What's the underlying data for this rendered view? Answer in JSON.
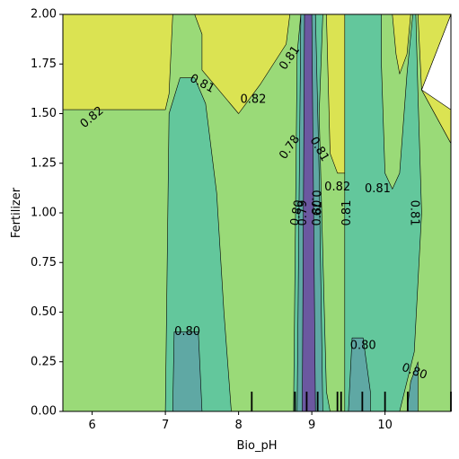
{
  "chart_data": {
    "type": "contour",
    "title": "",
    "xlabel": "Bio_pH",
    "ylabel": "Fertilizer",
    "xlim": [
      5.6,
      10.9
    ],
    "ylim": [
      0.0,
      2.0
    ],
    "x_ticks": [
      6,
      7,
      8,
      9,
      10
    ],
    "y_ticks": [
      0.0,
      0.25,
      0.5,
      0.75,
      1.0,
      1.25,
      1.5,
      1.75,
      2.0
    ],
    "grid": false,
    "legend": "none",
    "colormap": "viridis",
    "colors": {
      "very_low": "#6b58a0",
      "low": "#5fa8a4",
      "mid": "#63c79c",
      "high": "#9ada78",
      "top": "#dbe352",
      "outline": "#000000",
      "background": "#ffffff"
    },
    "regions": [
      {
        "level": "high",
        "points": [
          [
            5.6,
            0.0
          ],
          [
            10.9,
            0.0
          ],
          [
            10.9,
            1.35
          ],
          [
            10.5,
            1.62
          ],
          [
            10.9,
            2.0
          ],
          [
            5.6,
            2.0
          ]
        ]
      },
      {
        "level": "top",
        "points": [
          [
            5.6,
            1.52
          ],
          [
            7.0,
            1.52
          ],
          [
            7.05,
            1.6
          ],
          [
            7.1,
            2.0
          ],
          [
            5.6,
            2.0
          ]
        ]
      },
      {
        "level": "top",
        "points": [
          [
            8.7,
            2.0
          ],
          [
            8.65,
            1.85
          ],
          [
            8.3,
            1.65
          ],
          [
            8.1,
            1.55
          ],
          [
            8.0,
            1.5
          ],
          [
            7.5,
            1.72
          ],
          [
            7.5,
            1.9
          ],
          [
            7.4,
            2.0
          ]
        ]
      },
      {
        "level": "top",
        "points": [
          [
            9.2,
            2.0
          ],
          [
            9.25,
            1.3
          ],
          [
            9.35,
            1.2
          ],
          [
            9.55,
            1.2
          ],
          [
            9.6,
            2.0
          ]
        ]
      },
      {
        "level": "top",
        "points": [
          [
            10.1,
            2.0
          ],
          [
            10.15,
            1.8
          ],
          [
            10.2,
            1.7
          ],
          [
            10.3,
            1.8
          ],
          [
            10.35,
            2.0
          ]
        ]
      },
      {
        "level": "top",
        "points": [
          [
            10.45,
            2.0
          ],
          [
            10.9,
            2.0
          ],
          [
            10.5,
            1.62
          ]
        ]
      },
      {
        "level": "top",
        "points": [
          [
            10.5,
            1.62
          ],
          [
            10.9,
            1.35
          ],
          [
            10.9,
            1.52
          ]
        ]
      },
      {
        "level": "mid",
        "points": [
          [
            7.0,
            0.0
          ],
          [
            7.05,
            1.5
          ],
          [
            7.2,
            1.68
          ],
          [
            7.4,
            1.68
          ],
          [
            7.55,
            1.55
          ],
          [
            7.7,
            1.1
          ],
          [
            7.8,
            0.5
          ],
          [
            7.9,
            0.0
          ]
        ]
      },
      {
        "level": "mid",
        "points": [
          [
            8.75,
            0.0
          ],
          [
            8.8,
            1.8
          ],
          [
            8.85,
            2.0
          ],
          [
            9.15,
            2.0
          ],
          [
            9.1,
            1.5
          ],
          [
            9.2,
            0.1
          ],
          [
            9.25,
            0.0
          ]
        ]
      },
      {
        "level": "mid",
        "points": [
          [
            9.45,
            0.0
          ],
          [
            9.45,
            2.0
          ],
          [
            9.95,
            2.0
          ],
          [
            9.95,
            1.75
          ],
          [
            10.0,
            1.2
          ],
          [
            10.1,
            1.12
          ],
          [
            10.2,
            1.2
          ],
          [
            10.3,
            1.7
          ],
          [
            10.38,
            2.0
          ],
          [
            10.42,
            2.0
          ],
          [
            10.45,
            1.6
          ],
          [
            10.5,
            1.0
          ],
          [
            10.4,
            0.3
          ],
          [
            10.2,
            0.0
          ]
        ]
      },
      {
        "level": "low",
        "points": [
          [
            7.1,
            0.0
          ],
          [
            7.12,
            0.4
          ],
          [
            7.45,
            0.4
          ],
          [
            7.5,
            0.0
          ]
        ]
      },
      {
        "level": "low",
        "points": [
          [
            9.5,
            0.0
          ],
          [
            9.55,
            0.37
          ],
          [
            9.7,
            0.37
          ],
          [
            9.8,
            0.1
          ],
          [
            9.8,
            0.0
          ]
        ]
      },
      {
        "level": "low",
        "points": [
          [
            10.3,
            0.0
          ],
          [
            10.35,
            0.15
          ],
          [
            10.45,
            0.25
          ],
          [
            10.45,
            0.0
          ]
        ]
      },
      {
        "level": "low",
        "points": [
          [
            8.8,
            0.0
          ],
          [
            8.85,
            2.0
          ],
          [
            9.05,
            2.0
          ],
          [
            9.1,
            1.2
          ],
          [
            9.15,
            0.0
          ]
        ]
      },
      {
        "level": "very_low",
        "points": [
          [
            8.87,
            0.0
          ],
          [
            8.9,
            2.0
          ],
          [
            9.0,
            2.0
          ],
          [
            9.05,
            0.0
          ]
        ]
      }
    ],
    "contour_labels": [
      {
        "text": "0.82",
        "x": 6.0,
        "y": 1.48,
        "rotation": -40
      },
      {
        "text": "0.81",
        "x": 7.5,
        "y": 1.65,
        "rotation": 28
      },
      {
        "text": "0.82",
        "x": 8.2,
        "y": 1.57,
        "rotation": 0
      },
      {
        "text": "0.81",
        "x": 8.7,
        "y": 1.78,
        "rotation": -55
      },
      {
        "text": "0.78",
        "x": 8.7,
        "y": 1.33,
        "rotation": -55
      },
      {
        "text": "0.81",
        "x": 9.1,
        "y": 1.32,
        "rotation": 60
      },
      {
        "text": "0.82",
        "x": 9.35,
        "y": 1.13,
        "rotation": 0
      },
      {
        "text": "0.81",
        "x": 9.9,
        "y": 1.12,
        "rotation": 0
      },
      {
        "text": "0.81",
        "x": 9.48,
        "y": 1.0,
        "rotation": -90
      },
      {
        "text": "0.81",
        "x": 10.4,
        "y": 1.0,
        "rotation": 90
      },
      {
        "text": "0.80",
        "x": 8.8,
        "y": 1.0,
        "rotation": -80
      },
      {
        "text": "0.79",
        "x": 8.88,
        "y": 1.0,
        "rotation": -90
      },
      {
        "text": "0.79",
        "x": 9.05,
        "y": 1.05,
        "rotation": 90
      },
      {
        "text": "0.80",
        "x": 9.08,
        "y": 1.0,
        "rotation": -90
      },
      {
        "text": "0.80",
        "x": 7.3,
        "y": 0.4,
        "rotation": 0
      },
      {
        "text": "0.80",
        "x": 9.7,
        "y": 0.33,
        "rotation": 0
      },
      {
        "text": "0.80",
        "x": 10.4,
        "y": 0.2,
        "rotation": 20
      }
    ],
    "rug_x": [
      8.18,
      8.77,
      8.93,
      9.08,
      9.35,
      9.4,
      9.69,
      10.0,
      10.31,
      10.9
    ]
  }
}
